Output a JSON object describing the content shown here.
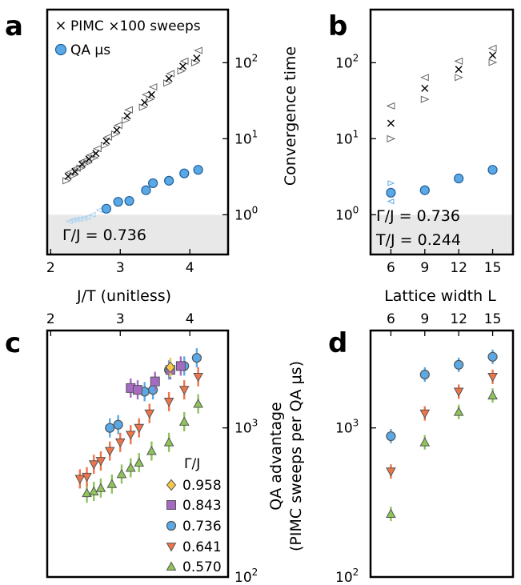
{
  "colors": {
    "qa": "#5aa9e6",
    "qa_edge": "#1f5d9a",
    "qa_faint": "#a9d2f2",
    "c0958": "#f7c748",
    "c0843": "#a56ac2",
    "c0736": "#5aa9e6",
    "c0641": "#f0744a",
    "c0570": "#8ec45a",
    "shade": "#e8e8e8",
    "pimc": "#000000",
    "pimc_tri": "#666666"
  },
  "chart_data": [
    {
      "panel": "a",
      "type": "scatter",
      "xlabel": "J/T (unitless)",
      "ylabel": "Convergence time",
      "yscale": "log",
      "ylim": [
        0.3,
        500
      ],
      "xlim": [
        1.95,
        4.55
      ],
      "xticks": [
        "2",
        "3",
        "4"
      ],
      "yticks": [
        "10^0",
        "10^1",
        "10^2"
      ],
      "shaded_below": 1.0,
      "legend": [
        "× PIMC ×100 sweeps",
        "QA μs"
      ],
      "legend_position": "top-left",
      "annotation": "Γ/J = 0.736",
      "series": [
        {
          "name": "PIMC ×100 sweeps",
          "marker": "x",
          "x": [
            2.25,
            2.35,
            2.45,
            2.55,
            2.65,
            2.8,
            2.95,
            3.1,
            3.35,
            3.45,
            3.7,
            3.9,
            4.1
          ],
          "y": [
            3.2,
            3.7,
            4.6,
            5.4,
            6.4,
            9.3,
            13,
            20,
            30,
            38,
            62,
            90,
            115
          ],
          "upper": [
            3.6,
            4.1,
            5.1,
            6.1,
            7.4,
            10.5,
            15,
            24,
            38,
            48,
            72,
            105,
            145
          ],
          "lower": [
            2.8,
            3.3,
            4.1,
            4.8,
            5.6,
            8.2,
            11.5,
            17.5,
            26,
            33,
            54,
            78,
            100
          ]
        },
        {
          "name": "QA μs",
          "marker": "circle",
          "x": [
            2.8,
            2.97,
            3.13,
            3.37,
            3.47,
            3.7,
            3.92,
            4.12
          ],
          "y": [
            1.2,
            1.48,
            1.52,
            2.1,
            2.6,
            2.8,
            3.5,
            3.9
          ],
          "faint_x": [
            2.27,
            2.32,
            2.37,
            2.42,
            2.48,
            2.53,
            2.6,
            2.7
          ],
          "faint_y": [
            0.82,
            0.85,
            0.87,
            0.88,
            0.9,
            0.93,
            1.0,
            1.15
          ]
        }
      ]
    },
    {
      "panel": "b",
      "type": "scatter",
      "xlabel": "Lattice width L",
      "yscale": "log",
      "ylim": [
        0.3,
        500
      ],
      "xlim": [
        4.2,
        16.8
      ],
      "xticks": [
        "6",
        "9",
        "12",
        "15"
      ],
      "yticks": [
        "10^0",
        "10^1",
        "10^2"
      ],
      "shaded_below": 1.0,
      "annotation": [
        "Γ/J = 0.736",
        "T/J = 0.244"
      ],
      "series": [
        {
          "name": "PIMC",
          "marker": "x",
          "x": [
            6,
            9,
            12,
            15
          ],
          "y": [
            16,
            46,
            82,
            125
          ],
          "upper": [
            27,
            64,
            105,
            155
          ],
          "lower": [
            10,
            33,
            64,
            101
          ]
        },
        {
          "name": "QA",
          "marker": "circle",
          "x": [
            6,
            9,
            12,
            15
          ],
          "y": [
            1.95,
            2.1,
            3.0,
            3.9
          ],
          "upper_faint": [
            2.6,
            null,
            null,
            null
          ],
          "lower_faint": [
            1.5,
            null,
            null,
            null
          ]
        }
      ]
    },
    {
      "panel": "c",
      "type": "scatter",
      "ylabel": "QA advantage (PIMC sweeps per QA μs)",
      "yscale": "log",
      "ylim": [
        100,
        4500
      ],
      "xlim": [
        1.95,
        4.55
      ],
      "xticks": [
        "2",
        "3",
        "4"
      ],
      "yticks": [
        "10^2",
        "10^3"
      ],
      "legend_title": "Γ/J",
      "legend_position": "lower-right",
      "series": [
        {
          "name": "0.958",
          "marker": "diamond",
          "color_key": "c0958",
          "x": [
            3.72
          ],
          "y": [
            2550
          ]
        },
        {
          "name": "0.843",
          "marker": "square",
          "color_key": "c0843",
          "x": [
            3.15,
            3.25,
            3.5,
            3.72,
            3.87
          ],
          "y": [
            1850,
            1800,
            2050,
            2450,
            2600
          ]
        },
        {
          "name": "0.736",
          "marker": "circle",
          "color_key": "c0736",
          "x": [
            2.85,
            2.97,
            3.35,
            3.47,
            3.7,
            3.92,
            4.1
          ],
          "y": [
            1000,
            1050,
            1750,
            1800,
            2450,
            2600,
            2950
          ]
        },
        {
          "name": "0.641",
          "marker": "triangle-down",
          "color_key": "c0641",
          "x": [
            2.42,
            2.52,
            2.62,
            2.72,
            2.85,
            3.0,
            3.15,
            3.27,
            3.42,
            3.7,
            3.92,
            4.12
          ],
          "y": [
            455,
            470,
            570,
            600,
            700,
            800,
            900,
            1000,
            1250,
            1500,
            1800,
            2200
          ]
        },
        {
          "name": "0.570",
          "marker": "triangle-up",
          "color_key": "c0570",
          "x": [
            2.52,
            2.62,
            2.72,
            2.88,
            3.02,
            3.15,
            3.27,
            3.45,
            3.7,
            3.92,
            4.12
          ],
          "y": [
            365,
            375,
            395,
            420,
            490,
            540,
            585,
            700,
            800,
            1100,
            1450
          ]
        }
      ],
      "legend": [
        "0.958",
        "0.843",
        "0.736",
        "0.641",
        "0.570"
      ]
    },
    {
      "panel": "d",
      "type": "scatter",
      "yscale": "log",
      "ylim": [
        100,
        4500
      ],
      "xlim": [
        4.2,
        16.8
      ],
      "xticks": [
        "6",
        "9",
        "12",
        "15"
      ],
      "yticks": [
        "10^2",
        "10^3"
      ],
      "series": [
        {
          "name": "0.736",
          "marker": "circle",
          "color_key": "c0736",
          "x": [
            6,
            9,
            12,
            15
          ],
          "y": [
            880,
            2280,
            2650,
            3000
          ]
        },
        {
          "name": "0.641",
          "marker": "triangle-down",
          "color_key": "c0641",
          "x": [
            6,
            9,
            12,
            15
          ],
          "y": [
            510,
            1250,
            1750,
            2200
          ]
        },
        {
          "name": "0.570",
          "marker": "triangle-up",
          "color_key": "c0570",
          "x": [
            6,
            9,
            12,
            15
          ],
          "y": [
            265,
            800,
            1280,
            1650
          ]
        }
      ]
    }
  ],
  "labels": {
    "a": "a",
    "b": "b",
    "c": "c",
    "d": "d",
    "legend_pimc": "PIMC ×100 sweeps",
    "legend_qa": "QA μs",
    "ab_ylabel": "Convergence time",
    "cd_ylabel_1": "QA advantage",
    "cd_ylabel_2": "(PIMC sweeps per QA μs)",
    "a_xlabel": "J/T (unitless)",
    "b_xlabel": "Lattice width L",
    "a_annot": "Γ/J = 0.736",
    "b_annot1": "Γ/J = 0.736",
    "b_annot2": "T/J = 0.244",
    "c_legend_title": "Γ/J"
  }
}
